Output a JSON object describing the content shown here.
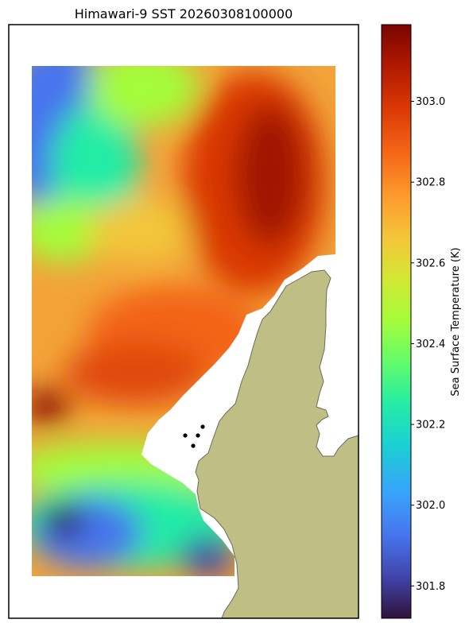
{
  "chart_data": {
    "type": "heatmap",
    "title": "Himawari-9 SST 20260308100000",
    "colorbar": {
      "label": "Sea Surface Temperature (K)",
      "vmin": 301.72,
      "vmax": 303.19,
      "ticks": [
        "301.8",
        "302.0",
        "302.2",
        "302.4",
        "302.6",
        "302.8",
        "303.0"
      ],
      "tick_values": [
        301.8,
        302.0,
        302.2,
        302.4,
        302.6,
        302.8,
        303.0
      ],
      "colormap": "turbo"
    },
    "grid": false,
    "land_color": "#bfbf85",
    "land_edge_color": "#6b6b55",
    "missing_color": "#ffffff",
    "station_points_color": "#000000",
    "regions": [
      {
        "name": "northwest cool patch",
        "value": 301.95
      },
      {
        "name": "west-central band",
        "value": 302.45
      },
      {
        "name": "northeast warm core",
        "value": 303.1
      },
      {
        "name": "central warm band",
        "value": 302.95
      },
      {
        "name": "west mid-latitude",
        "value": 302.75
      },
      {
        "name": "southwest warm spot",
        "value": 303.15
      },
      {
        "name": "south cool patch",
        "value": 301.85
      }
    ]
  }
}
